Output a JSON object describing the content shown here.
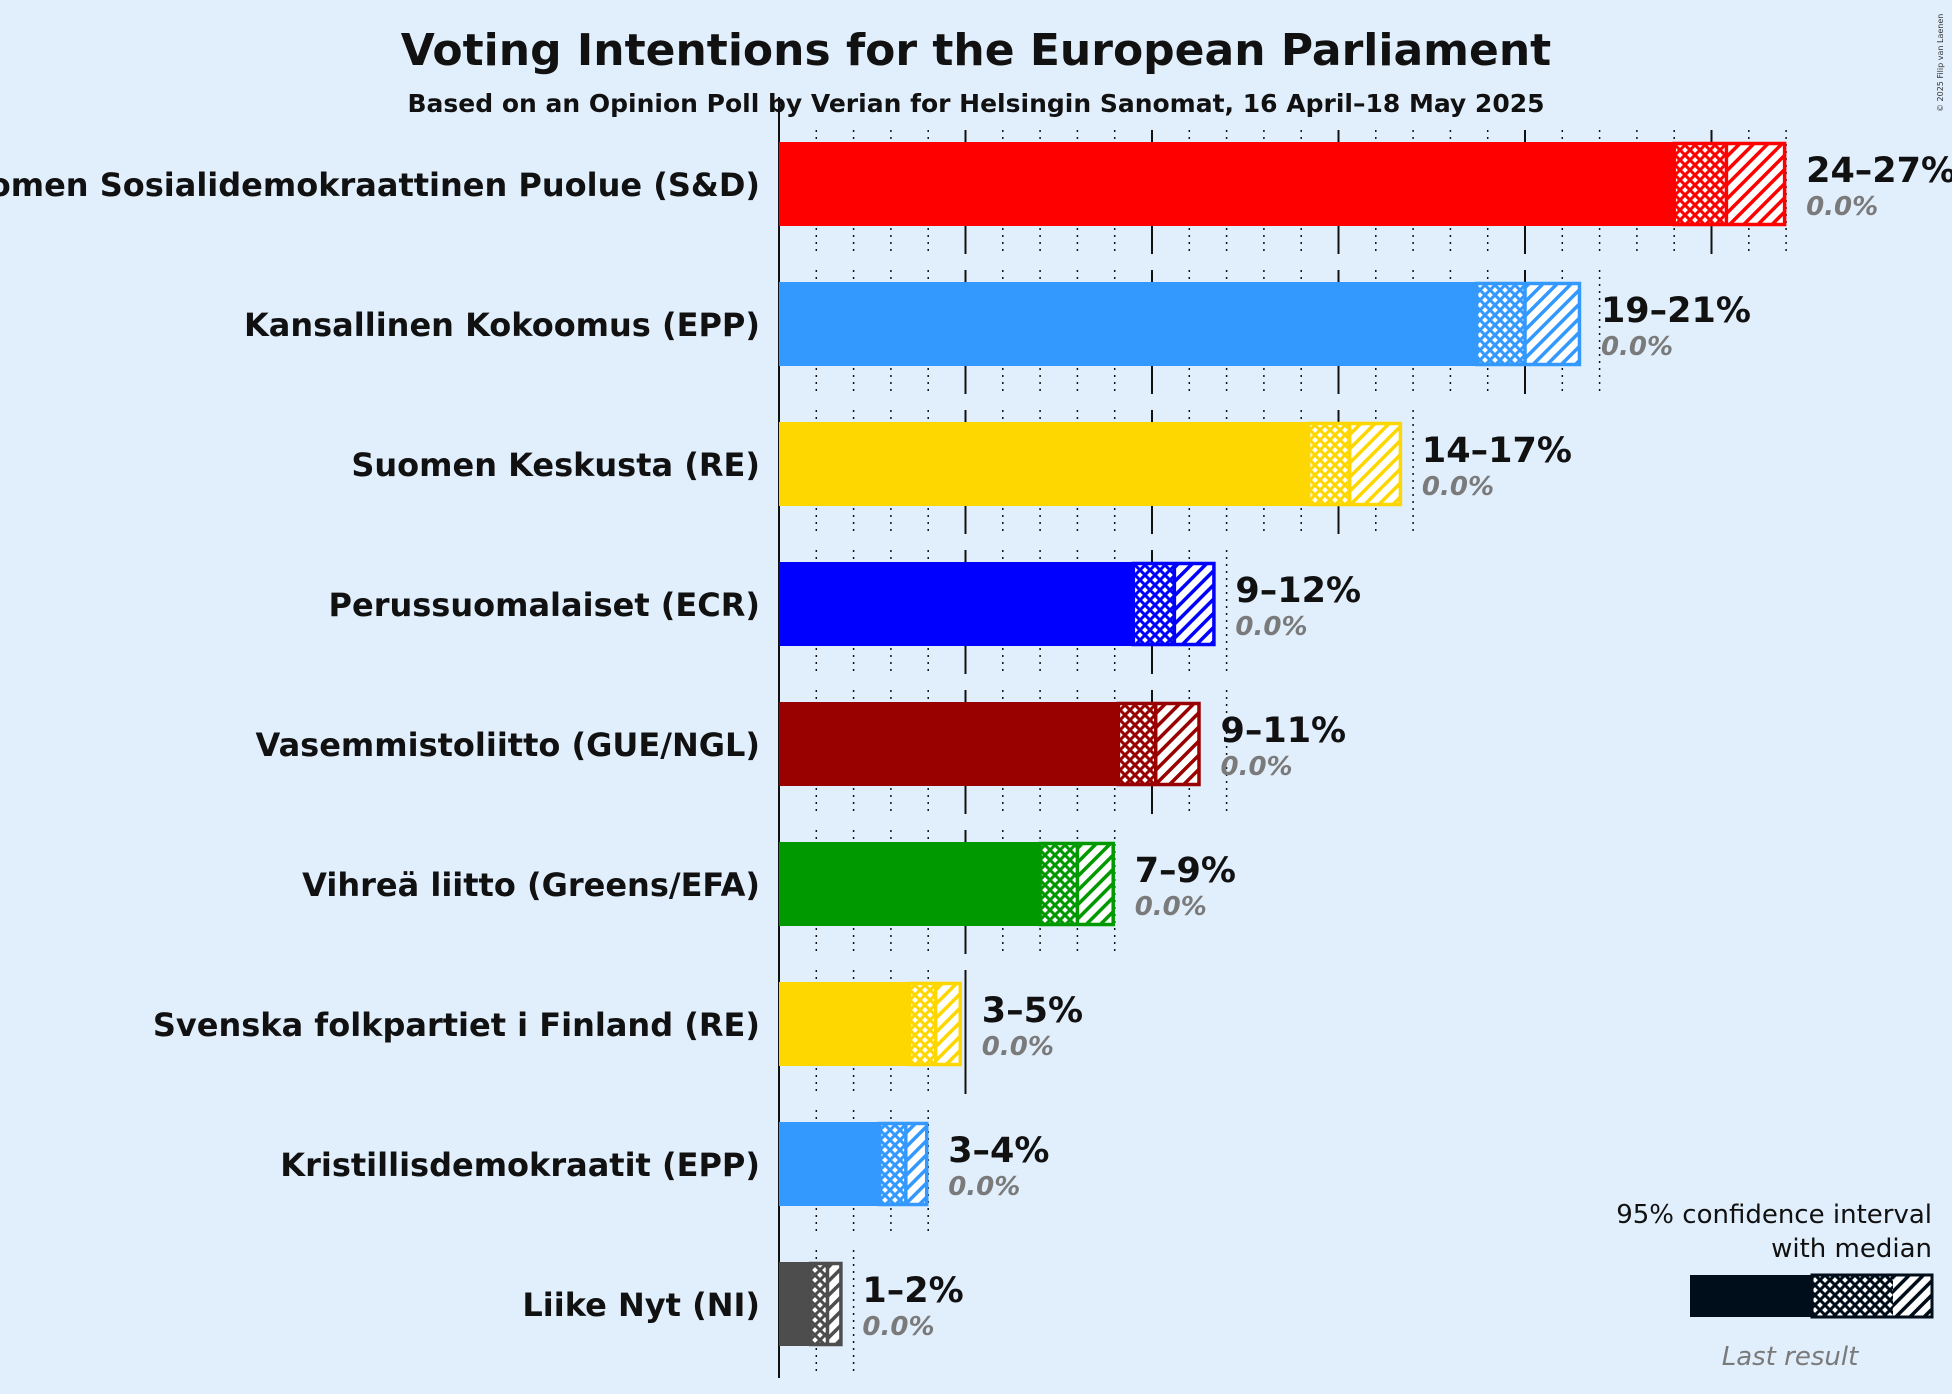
{
  "title": "Voting Intentions for the European Parliament",
  "subtitle": "Based on an Opinion Poll by Verian for Helsingin Sanomat, 16 April–18 May 2025",
  "copyright": "© 2025 Filip van Laenen",
  "legend": {
    "line1": "95% confidence interval",
    "line2": "with median",
    "last_result": "Last result"
  },
  "chart_data": {
    "type": "bar",
    "orientation": "horizontal",
    "title": "Voting Intentions for the European Parliament",
    "subtitle": "Based on an Opinion Poll by Verian for Helsingin Sanomat, 16 April–18 May 2025",
    "xlim": [
      0,
      27
    ],
    "unit": "%",
    "series": [
      {
        "party": "Suomen Sosialidemokraattinen Puolue (S&D)",
        "color": "#ff0000",
        "low": 24,
        "median": 25.4,
        "high": 27,
        "range_label": "24–27%",
        "last_result": "0.0%"
      },
      {
        "party": "Kansallinen Kokoomus (EPP)",
        "color": "#3399ff",
        "low": 18.7,
        "median": 20.0,
        "high": 21.5,
        "range_label": "19–21%",
        "last_result": "0.0%"
      },
      {
        "party": "Suomen Keskusta (RE)",
        "color": "#ffd700",
        "low": 14.2,
        "median": 15.3,
        "high": 16.7,
        "range_label": "14–17%",
        "last_result": "0.0%"
      },
      {
        "party": "Perussuomalaiset (ECR)",
        "color": "#0000ff",
        "low": 9.5,
        "median": 10.6,
        "high": 11.7,
        "range_label": "9–12%",
        "last_result": "0.0%"
      },
      {
        "party": "Vasemmistoliitto (GUE/NGL)",
        "color": "#990000",
        "low": 9.1,
        "median": 10.1,
        "high": 11.3,
        "range_label": "9–11%",
        "last_result": "0.0%"
      },
      {
        "party": "Vihreä liitto (Greens/EFA)",
        "color": "#009900",
        "low": 7.0,
        "median": 8.0,
        "high": 9.0,
        "range_label": "7–9%",
        "last_result": "0.0%"
      },
      {
        "party": "Svenska folkpartiet i Finland (RE)",
        "color": "#ffd700",
        "low": 3.5,
        "median": 4.2,
        "high": 4.9,
        "range_label": "3–5%",
        "last_result": "0.0%"
      },
      {
        "party": "Kristillisdemokraatit (EPP)",
        "color": "#3399ff",
        "low": 2.7,
        "median": 3.4,
        "high": 4.0,
        "range_label": "3–4%",
        "last_result": "0.0%"
      },
      {
        "party": "Liike Nyt (NI)",
        "color": "#4d4d4d",
        "low": 0.85,
        "median": 1.3,
        "high": 1.7,
        "range_label": "1–2%",
        "last_result": "0.0%"
      }
    ]
  }
}
